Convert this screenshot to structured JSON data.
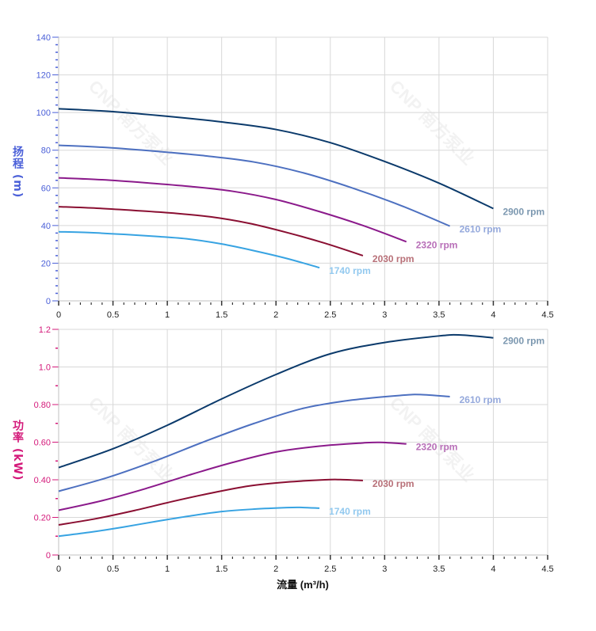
{
  "watermark": "CNP 南方泵业",
  "chart_data": [
    {
      "type": "line",
      "ylabel": "扬程 (m)",
      "xlabel": "",
      "xlim": [
        0,
        4.5
      ],
      "ylim": [
        0,
        140
      ],
      "xticks": [
        "0",
        "0.5",
        "1",
        "1.5",
        "2",
        "2.5",
        "3",
        "3.5",
        "4",
        "4.5"
      ],
      "yticks": [
        "0",
        "20",
        "40",
        "60",
        "80",
        "100",
        "120",
        "140"
      ],
      "grid": true,
      "axis_color": "#4a5fd8",
      "series": [
        {
          "name": "2900 rpm",
          "color": "#0b3a6b",
          "label_color": "#7c98b0",
          "x": [
            0,
            0.5,
            1,
            1.5,
            2,
            2.5,
            3,
            3.5,
            4
          ],
          "y": [
            102,
            100.5,
            98,
            95,
            91,
            84,
            74,
            62.5,
            49
          ]
        },
        {
          "name": "2610 rpm",
          "color": "#4d70c0",
          "label_color": "#95a9dc",
          "x": [
            0,
            0.45,
            0.9,
            1.35,
            1.8,
            2.25,
            2.7,
            3.15,
            3.6
          ],
          "y": [
            82.6,
            81.4,
            79.4,
            77,
            73.7,
            68,
            60,
            50.6,
            39.7
          ]
        },
        {
          "name": "2320 rpm",
          "color": "#8b1a8b",
          "label_color": "#b86fb8",
          "x": [
            0,
            0.4,
            0.8,
            1.2,
            1.6,
            2.0,
            2.4,
            2.8,
            3.2
          ],
          "y": [
            65.3,
            64.3,
            62.7,
            60.8,
            58.2,
            53.8,
            47.4,
            40,
            31.4
          ]
        },
        {
          "name": "2030 rpm",
          "color": "#8a0f32",
          "label_color": "#b87078",
          "x": [
            0,
            0.35,
            0.7,
            1.05,
            1.4,
            1.75,
            2.1,
            2.45,
            2.8
          ],
          "y": [
            50,
            49.2,
            48,
            46.6,
            44.6,
            41.2,
            36.3,
            30.6,
            24
          ]
        },
        {
          "name": "1740 rpm",
          "color": "#37a3e2",
          "label_color": "#92c9ef",
          "x": [
            0,
            0.3,
            0.6,
            0.9,
            1.2,
            1.5,
            1.8,
            2.1,
            2.4
          ],
          "y": [
            36.7,
            36.2,
            35.3,
            34.2,
            32.8,
            30.2,
            26.6,
            22.5,
            17.6
          ]
        }
      ]
    },
    {
      "type": "line",
      "ylabel": "功率 (kW)",
      "xlabel": "流量 (m³/h)",
      "xlim": [
        0,
        4.5
      ],
      "ylim": [
        0,
        1.2
      ],
      "xticks": [
        "0",
        "0.5",
        "1",
        "1.5",
        "2",
        "2.5",
        "3",
        "3.5",
        "4",
        "4.5"
      ],
      "yticks": [
        "0",
        "0.20",
        "0.40",
        "0.60",
        "0.80",
        "1.0",
        "1.2"
      ],
      "grid": true,
      "axis_color": "#d4197a",
      "series": [
        {
          "name": "2900 rpm",
          "color": "#0b3a6b",
          "label_color": "#7c98b0",
          "x": [
            0,
            0.5,
            1,
            1.5,
            2,
            2.5,
            3,
            3.5,
            3.7,
            4
          ],
          "y": [
            0.465,
            0.565,
            0.69,
            0.83,
            0.96,
            1.07,
            1.13,
            1.165,
            1.17,
            1.155
          ]
        },
        {
          "name": "2610 rpm",
          "color": "#4d70c0",
          "label_color": "#95a9dc",
          "x": [
            0,
            0.45,
            0.9,
            1.35,
            1.8,
            2.25,
            2.7,
            3.15,
            3.33,
            3.6
          ],
          "y": [
            0.339,
            0.412,
            0.503,
            0.605,
            0.7,
            0.78,
            0.824,
            0.849,
            0.853,
            0.842
          ]
        },
        {
          "name": "2320 rpm",
          "color": "#8b1a8b",
          "label_color": "#b86fb8",
          "x": [
            0,
            0.4,
            0.8,
            1.2,
            1.6,
            2.0,
            2.4,
            2.8,
            2.96,
            3.2
          ],
          "y": [
            0.238,
            0.289,
            0.353,
            0.425,
            0.492,
            0.548,
            0.579,
            0.596,
            0.599,
            0.591
          ]
        },
        {
          "name": "2030 rpm",
          "color": "#8a0f32",
          "label_color": "#b87078",
          "x": [
            0,
            0.35,
            0.7,
            1.05,
            1.4,
            1.75,
            2.1,
            2.45,
            2.59,
            2.8
          ],
          "y": [
            0.16,
            0.194,
            0.237,
            0.285,
            0.329,
            0.367,
            0.388,
            0.4,
            0.401,
            0.396
          ]
        },
        {
          "name": "1740 rpm",
          "color": "#37a3e2",
          "label_color": "#92c9ef",
          "x": [
            0,
            0.3,
            0.6,
            0.9,
            1.2,
            1.5,
            1.8,
            2.1,
            2.22,
            2.4
          ],
          "y": [
            0.1,
            0.122,
            0.149,
            0.179,
            0.207,
            0.231,
            0.244,
            0.252,
            0.253,
            0.249
          ]
        }
      ]
    }
  ]
}
